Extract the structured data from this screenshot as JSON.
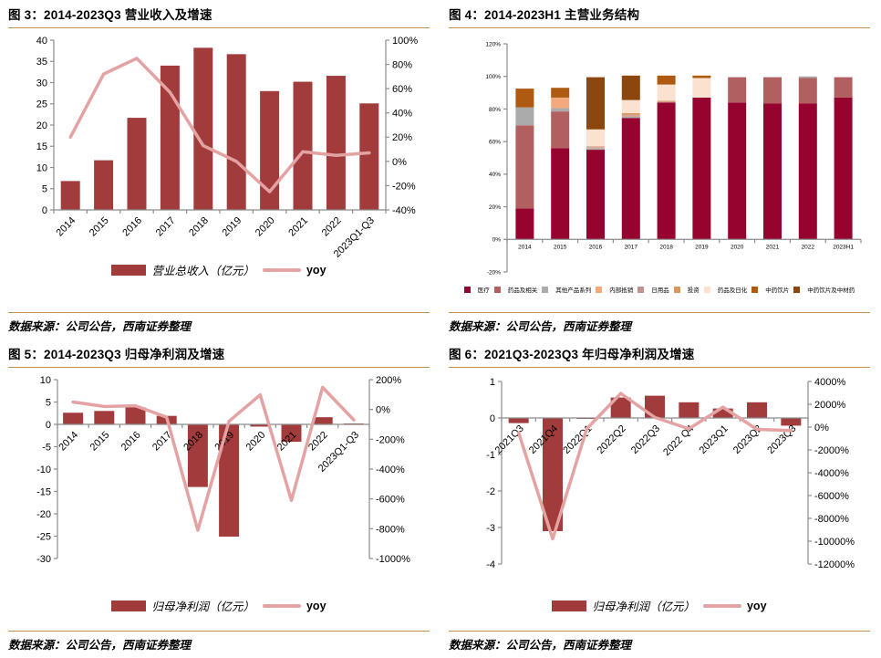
{
  "styles": {
    "accent_gold": "#BF9345",
    "bar_red": "#A23C3C",
    "line_pink": "#E4A2A3",
    "axis_gray": "#8C8C8C"
  },
  "chart_data": [
    {
      "id": "fig3",
      "type": "bar",
      "title": "图 3：2014-2023Q3 营业收入及增速",
      "source": "数据来源：公司公告，西南证券整理",
      "categories": [
        "2014",
        "2015",
        "2016",
        "2017",
        "2018",
        "2019",
        "2020",
        "2021",
        "2022",
        "2023Q1-Q3"
      ],
      "bar_series": {
        "name": "营业总收入（亿元）",
        "color": "#A23C3C",
        "values": [
          6.8,
          11.7,
          21.7,
          34.0,
          38.2,
          36.7,
          28.0,
          30.2,
          31.6,
          25.1
        ]
      },
      "line_series": {
        "name": "yoy",
        "color": "#E4A2A3",
        "values": [
          20,
          72,
          85,
          57,
          13,
          0,
          -25,
          8,
          5,
          7
        ]
      },
      "left_axis": {
        "min": 0,
        "max": 40,
        "ticks": [
          "0",
          "5",
          "10",
          "15",
          "20",
          "25",
          "30",
          "35",
          "40"
        ]
      },
      "right_axis": {
        "min": -40,
        "max": 100,
        "ticks": [
          "100%",
          "80%",
          "60%",
          "40%",
          "20%",
          "0%",
          "-20%",
          "-40%"
        ]
      },
      "legend_position": "bottom",
      "grid": false
    },
    {
      "id": "fig4",
      "type": "bar",
      "title": "图 4：2014-2023H1 主营业务结构",
      "source": "数据来源：公司公告，西南证券整理",
      "categories": [
        "2014",
        "2015",
        "2016",
        "2017",
        "2018",
        "2019",
        "2020",
        "2021",
        "2022",
        "2023H1"
      ],
      "series": [
        {
          "name": "医疗",
          "color": "#97032F",
          "values": [
            19,
            56,
            55,
            74.5,
            84,
            87,
            84,
            83.5,
            83.5,
            87
          ]
        },
        {
          "name": "药品及相关",
          "color": "#B2605F",
          "values": [
            51,
            22.5,
            0,
            0,
            0,
            0,
            15.5,
            16,
            15.5,
            12.5
          ]
        },
        {
          "name": "其他产品系列",
          "color": "#ABABAB",
          "values": [
            11,
            2,
            1,
            1,
            0,
            0,
            0,
            0,
            1,
            0
          ]
        },
        {
          "name": "内部抵销",
          "color": "#F3A97B",
          "values": [
            0,
            6.5,
            0.5,
            0.5,
            0,
            0,
            0,
            0,
            0,
            0
          ]
        },
        {
          "name": "日用品",
          "color": "#C49191",
          "values": [
            0,
            0,
            0.5,
            0.5,
            0.5,
            0,
            0,
            0,
            0,
            0
          ]
        },
        {
          "name": "投资",
          "color": "#D9975B",
          "values": [
            0,
            0,
            0,
            1,
            0.5,
            0,
            0,
            0,
            0,
            0
          ]
        },
        {
          "name": "药品及日化",
          "color": "#FBE2D0",
          "values": [
            0,
            0,
            10.5,
            8,
            10,
            12,
            0,
            0,
            0,
            0
          ]
        },
        {
          "name": "中药饮片",
          "color": "#AE5A10",
          "values": [
            11.5,
            6,
            0,
            0,
            5.5,
            1.5,
            0,
            0,
            0,
            0
          ]
        },
        {
          "name": "中药饮片及中材药",
          "color": "#8C470E",
          "values": [
            0,
            0,
            32,
            15,
            0,
            0,
            0,
            0,
            0,
            0
          ]
        }
      ],
      "left_axis": {
        "min": -20,
        "max": 120,
        "ticks": [
          "120%",
          "100%",
          "80%",
          "60%",
          "40%",
          "20%",
          "0%",
          "-20%"
        ]
      },
      "legend_position": "bottom",
      "grid": false
    },
    {
      "id": "fig5",
      "type": "bar",
      "title": "图 5：2014-2023Q3 归母净利润及增速",
      "source": "数据来源：公司公告，西南证券整理",
      "categories": [
        "2014",
        "2015",
        "2016",
        "2017",
        "2018",
        "2019",
        "2020",
        "2021",
        "2022",
        "2023Q1-Q3"
      ],
      "bar_series": {
        "name": "归母净利润（亿元）",
        "color": "#A23C3C",
        "values": [
          2.6,
          3.0,
          3.8,
          1.9,
          -14.0,
          -25.1,
          -0.5,
          -3.9,
          1.6,
          0.2
        ]
      },
      "line_series": {
        "name": "yoy",
        "color": "#E4A2A3",
        "values": [
          50,
          20,
          25,
          -52,
          -810,
          -79,
          98,
          -610,
          148,
          -70
        ]
      },
      "left_axis": {
        "min": -30,
        "max": 10,
        "ticks": [
          "10",
          "5",
          "0",
          "-5",
          "-10",
          "-15",
          "-20",
          "-25",
          "-30"
        ]
      },
      "right_axis": {
        "min": -1000,
        "max": 200,
        "ticks": [
          "200%",
          "0%",
          "-200%",
          "-400%",
          "-600%",
          "-800%",
          "-1000%"
        ]
      },
      "legend_position": "bottom",
      "grid": false
    },
    {
      "id": "fig6",
      "type": "bar",
      "title": "图 6：2021Q3-2023Q3 年归母净利润及增速",
      "source": "数据来源：公司公告，西南证券整理",
      "categories": [
        "2021Q3",
        "2021Q4",
        "2022Q1",
        "2022Q2",
        "2022Q3",
        "2022 Q4",
        "2023Q1",
        "2023Q2",
        "2023Q3"
      ],
      "bar_series": {
        "name": "归母净利润（亿元）",
        "color": "#A23C3C",
        "values": [
          -0.14,
          -3.1,
          -0.02,
          0.56,
          0.61,
          0.43,
          0.26,
          0.43,
          -0.21
        ]
      },
      "line_series": {
        "name": "yoy",
        "color": "#E4A2A3",
        "values": [
          -500,
          -9800,
          -150,
          2950,
          850,
          -150,
          1750,
          -200,
          -300
        ]
      },
      "left_axis": {
        "min": -4,
        "max": 1,
        "ticks": [
          "1",
          "0",
          "-1",
          "-2",
          "-3",
          "-4"
        ]
      },
      "right_axis": {
        "min": -12000,
        "max": 4000,
        "ticks": [
          "4000%",
          "2000%",
          "0%",
          "-2000%",
          "-4000%",
          "-6000%",
          "-8000%",
          "-10000%",
          "-12000%"
        ]
      },
      "legend_position": "bottom",
      "grid": false
    }
  ]
}
